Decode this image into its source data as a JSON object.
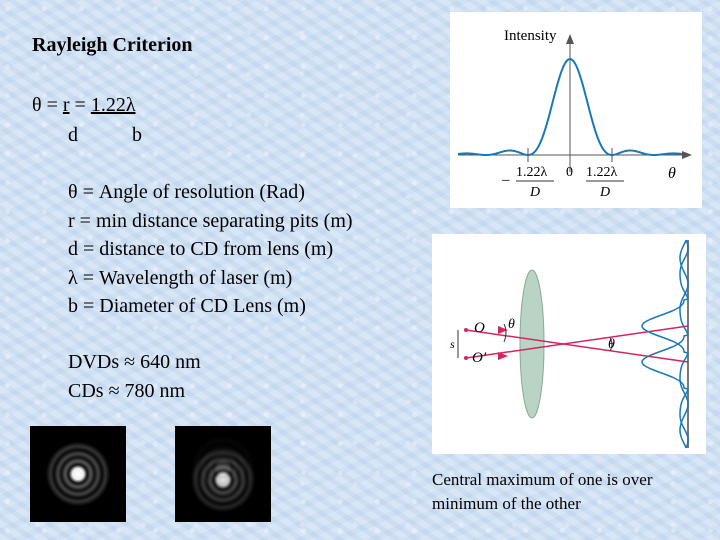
{
  "slide": {
    "title": "Rayleigh Criterion",
    "equation": {
      "lhs": "θ = ",
      "numerator_1": "r",
      "equals": " = ",
      "numerator_2": "1.22λ",
      "denominator_1": "d",
      "denominator_2": "b"
    },
    "definitions": [
      "θ = Angle of resolution (Rad)",
      "r = min distance separating pits (m)",
      "d = distance to CD from lens (m)",
      "λ = Wavelength of laser (m)",
      "b = Diameter of CD Lens (m)"
    ],
    "wavelengths": [
      "DVDs ≈ 640 nm",
      "CDs ≈ 780 nm"
    ],
    "caption": "Central maximum of one is over minimum of the other"
  },
  "intensity_figure": {
    "y_axis_label": "Intensity",
    "x_axis_label": "θ",
    "tick_left_num": "1.22λ",
    "tick_left_den": "D",
    "tick_left_sign": "–",
    "tick_zero": "0",
    "tick_right_num": "1.22λ",
    "tick_right_den": "D"
  },
  "lens_figure": {
    "label_o": "O",
    "label_o_prime": "O′",
    "label_s": "s",
    "label_theta_1": "θ",
    "label_theta_2": "θ"
  },
  "colors": {
    "curve": "#1a78b8",
    "ray": "#d6245c",
    "lens": "#b9d3c4"
  }
}
